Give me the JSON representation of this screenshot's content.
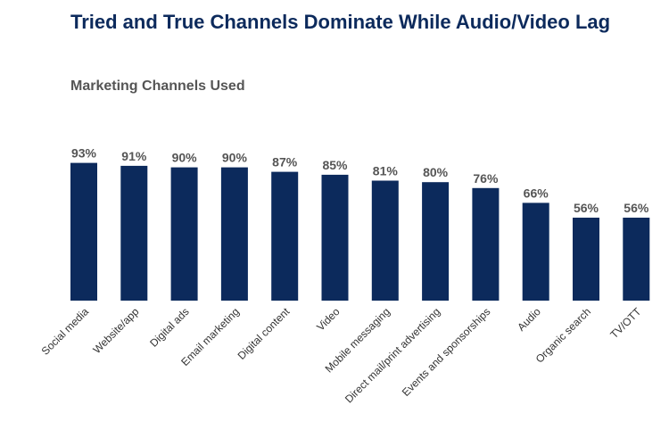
{
  "header": {
    "title": "Tried and True Channels Dominate While Audio/Video Lag",
    "subtitle": "Marketing Channels Used"
  },
  "colors": {
    "bar": "#0c2a5c"
  },
  "chart_data": {
    "type": "bar",
    "title": "Marketing Channels Used",
    "xlabel": "",
    "ylabel": "",
    "ylim": [
      0,
      100
    ],
    "value_suffix": "%",
    "categories": [
      "Social media",
      "Website/app",
      "Digital ads",
      "Email marketing",
      "Digital content",
      "Video",
      "Mobile messaging",
      "Direct mail/print advertising",
      "Events and sponsorships",
      "Audio",
      "Organic search",
      "TV/OTT"
    ],
    "values": [
      93,
      91,
      90,
      90,
      87,
      85,
      81,
      80,
      76,
      66,
      56,
      56
    ]
  }
}
